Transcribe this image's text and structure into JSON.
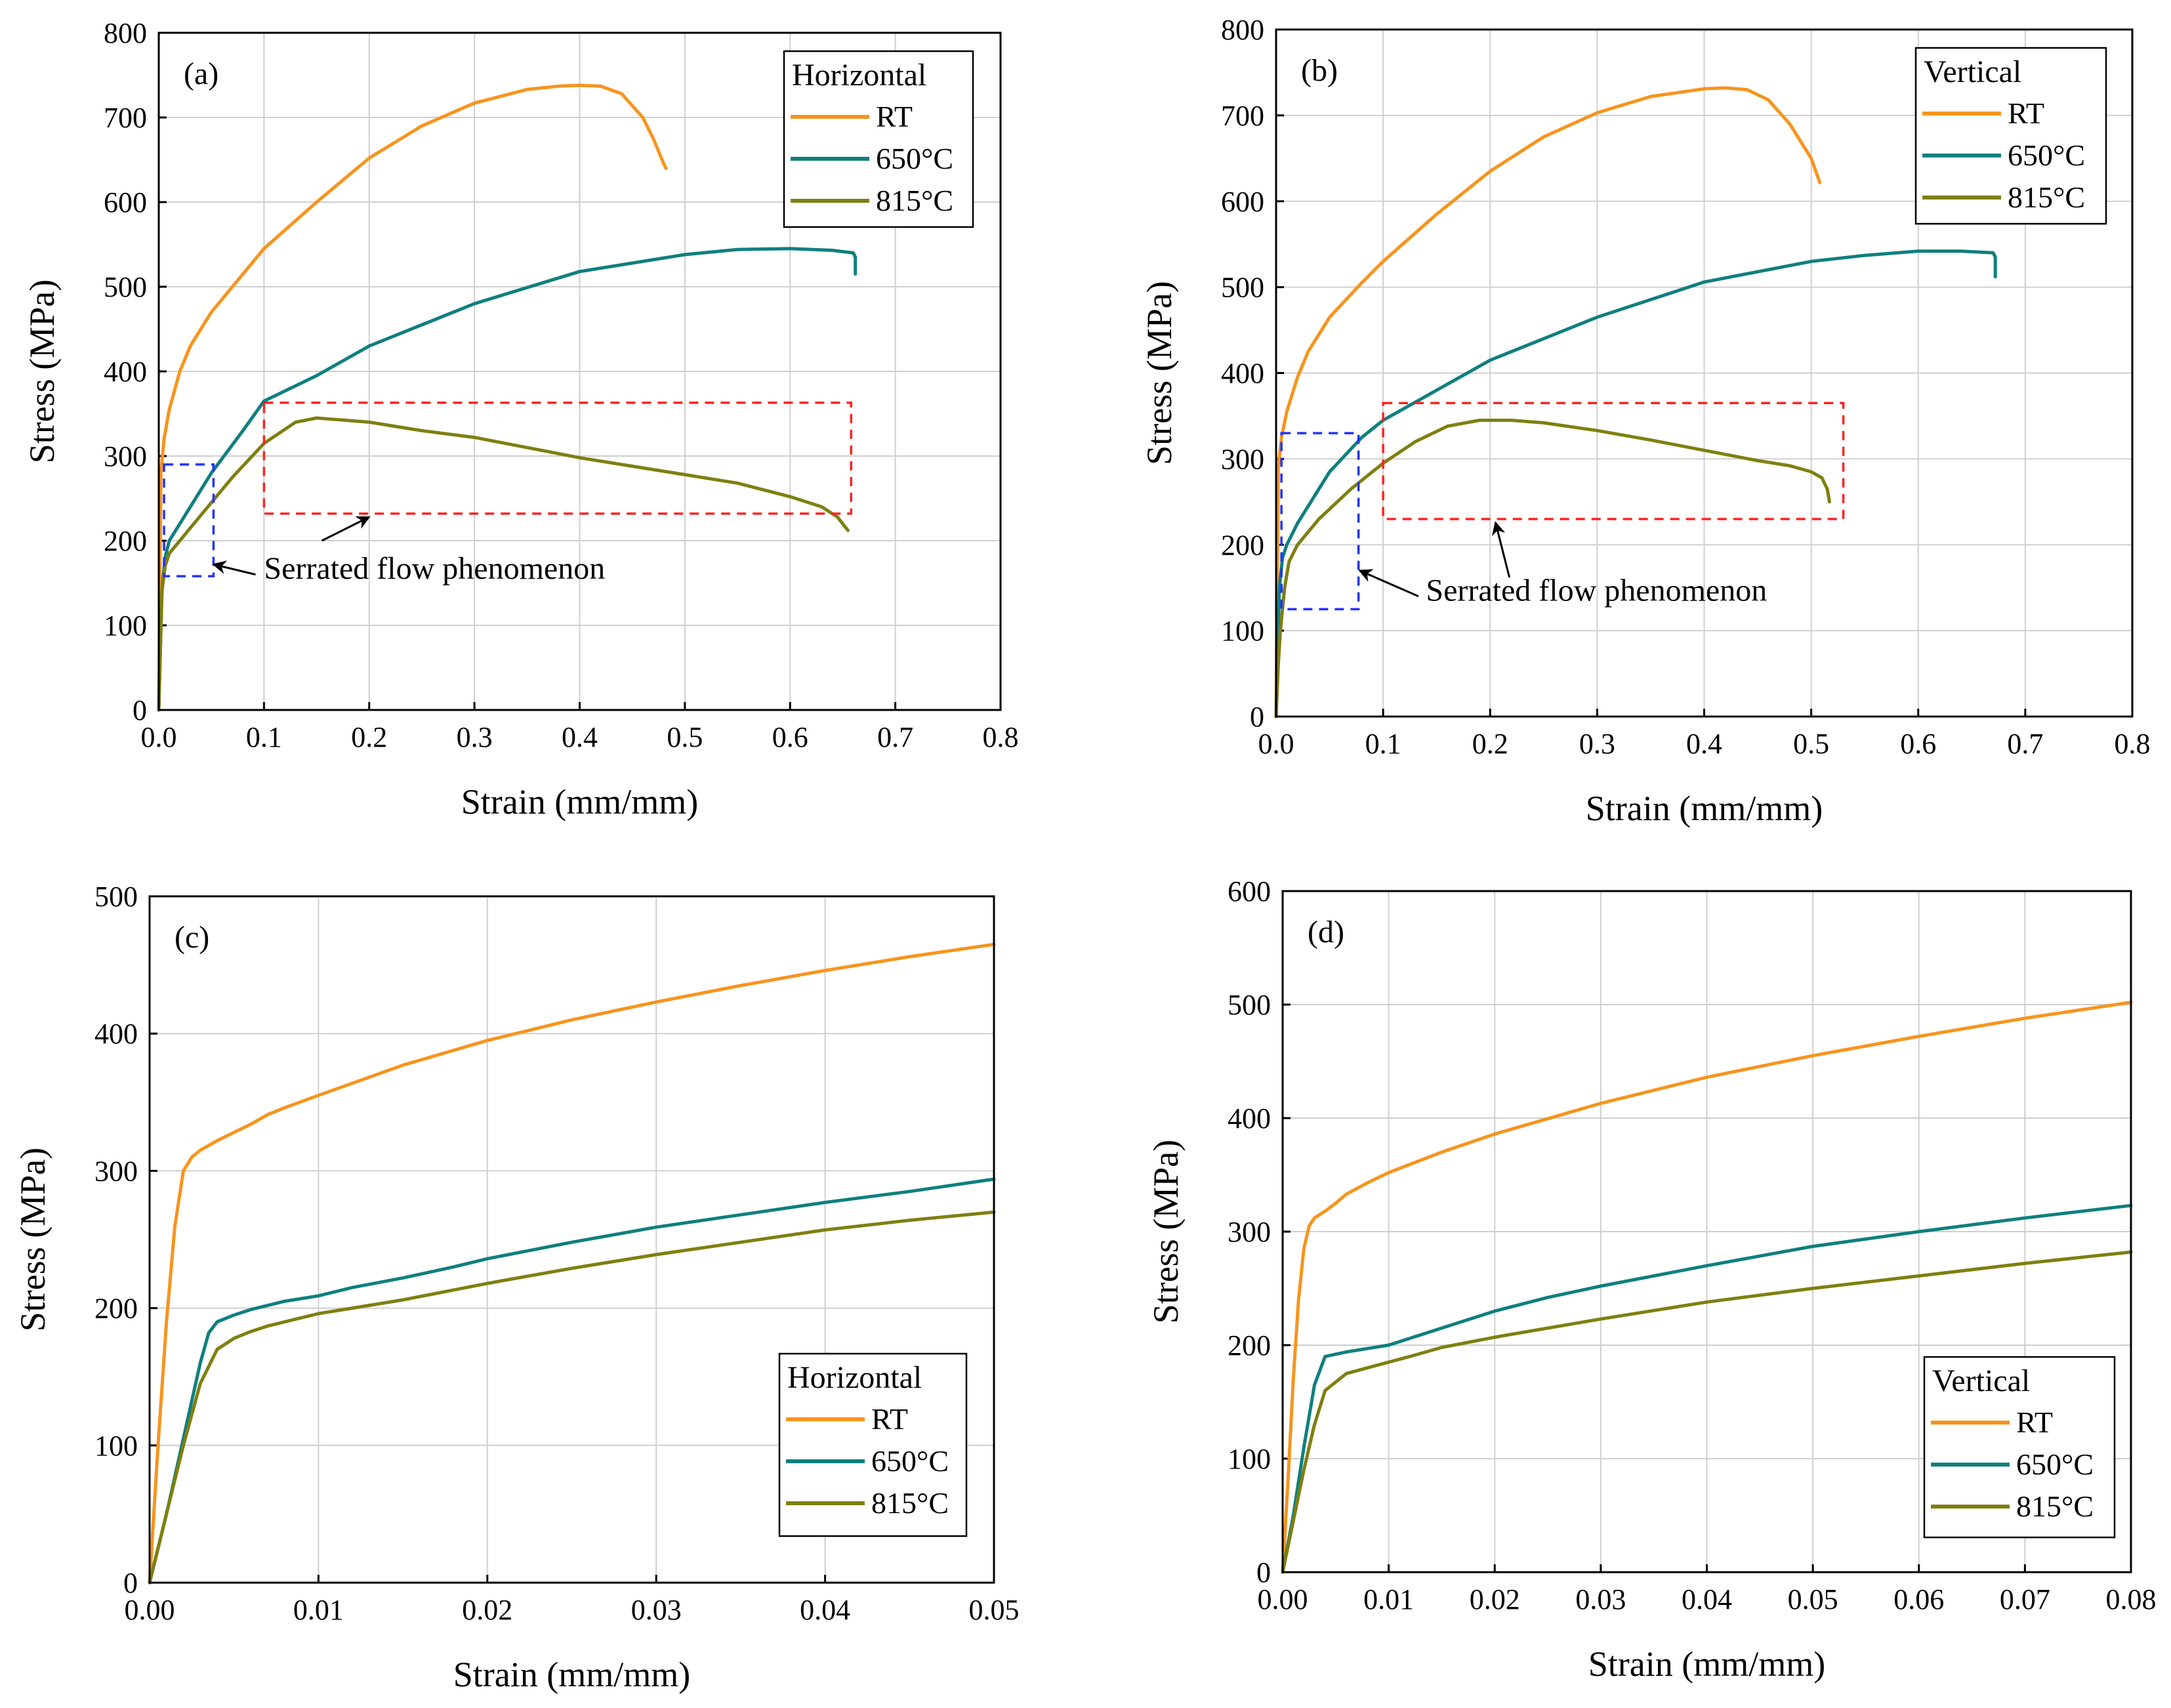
{
  "colors": {
    "rt": "#F7941D",
    "t650": "#0F7F7F",
    "t815": "#7F7F10",
    "box_red": "#FF2222",
    "box_blue": "#2233FF"
  },
  "annotation_text": "Serrated flow phenomenon",
  "chart_data": [
    {
      "id": "a",
      "type": "line",
      "panel_label": "(a)",
      "xlabel": "Strain (mm/mm)",
      "ylabel": "Stress (MPa)",
      "xlim": [
        0,
        0.8
      ],
      "ylim": [
        0,
        800
      ],
      "xticks": [
        "0.0",
        "0.1",
        "0.2",
        "0.3",
        "0.4",
        "0.5",
        "0.6",
        "0.7",
        "0.8"
      ],
      "yticks": [
        "0",
        "100",
        "200",
        "300",
        "400",
        "500",
        "600",
        "700",
        "800"
      ],
      "grid": true,
      "legend": {
        "title": "Horizontal",
        "entries": [
          "RT",
          "650°C",
          "815°C"
        ],
        "position": "top-right"
      },
      "series": [
        {
          "name": "RT",
          "x": [
            0,
            0.002,
            0.005,
            0.01,
            0.02,
            0.03,
            0.05,
            0.08,
            0.1,
            0.15,
            0.2,
            0.25,
            0.3,
            0.35,
            0.38,
            0.4,
            0.42,
            0.44,
            0.46,
            0.47,
            0.48,
            0.482
          ],
          "y": [
            0,
            280,
            320,
            355,
            400,
            430,
            470,
            515,
            545,
            600,
            652,
            690,
            717,
            733,
            737,
            738,
            737,
            728,
            700,
            675,
            645,
            640
          ]
        },
        {
          "name": "650°C",
          "x": [
            0,
            0.003,
            0.006,
            0.01,
            0.02,
            0.03,
            0.05,
            0.08,
            0.1,
            0.15,
            0.2,
            0.3,
            0.4,
            0.5,
            0.55,
            0.6,
            0.64,
            0.66,
            0.662,
            0.662
          ],
          "y": [
            0,
            140,
            180,
            200,
            220,
            240,
            280,
            330,
            365,
            395,
            430,
            480,
            518,
            538,
            544,
            545,
            543,
            540,
            535,
            515
          ]
        },
        {
          "name": "815°C",
          "x": [
            0,
            0.003,
            0.006,
            0.01,
            0.02,
            0.04,
            0.07,
            0.1,
            0.13,
            0.15,
            0.2,
            0.25,
            0.3,
            0.35,
            0.4,
            0.45,
            0.5,
            0.55,
            0.6,
            0.63,
            0.645,
            0.655
          ],
          "y": [
            0,
            140,
            170,
            185,
            200,
            230,
            275,
            315,
            340,
            345,
            340,
            330,
            322,
            310,
            298,
            288,
            278,
            268,
            252,
            240,
            228,
            212
          ]
        }
      ],
      "boxes": [
        {
          "color": "box_blue",
          "x": [
            0.005,
            0.052
          ],
          "y": [
            158,
            290
          ]
        },
        {
          "color": "box_red",
          "x": [
            0.1,
            0.658
          ],
          "y": [
            232,
            363
          ]
        }
      ],
      "annotation": {
        "text_x": 0.1,
        "text_y": 155,
        "arrows": [
          {
            "from": [
              0.092,
              160
            ],
            "to": [
              0.052,
              172
            ]
          },
          {
            "from": [
              0.155,
              200
            ],
            "to": [
              0.2,
              228
            ]
          }
        ]
      }
    },
    {
      "id": "b",
      "type": "line",
      "panel_label": "(b)",
      "xlabel": "Strain (mm/mm)",
      "ylabel": "Stress (MPa)",
      "xlim": [
        0,
        0.8
      ],
      "ylim": [
        0,
        800
      ],
      "xticks": [
        "0.0",
        "0.1",
        "0.2",
        "0.3",
        "0.4",
        "0.5",
        "0.6",
        "0.7",
        "0.8"
      ],
      "yticks": [
        "0",
        "100",
        "200",
        "300",
        "400",
        "500",
        "600",
        "700",
        "800"
      ],
      "grid": true,
      "legend": {
        "title": "Vertical",
        "entries": [
          "RT",
          "650°C",
          "815°C"
        ],
        "position": "top-right"
      },
      "series": [
        {
          "name": "RT",
          "x": [
            0,
            0.002,
            0.005,
            0.01,
            0.02,
            0.03,
            0.05,
            0.08,
            0.1,
            0.15,
            0.2,
            0.25,
            0.3,
            0.35,
            0.4,
            0.42,
            0.44,
            0.46,
            0.48,
            0.5,
            0.508
          ],
          "y": [
            0,
            290,
            325,
            355,
            395,
            425,
            465,
            505,
            530,
            585,
            635,
            675,
            703,
            722,
            731,
            732,
            730,
            718,
            690,
            650,
            622
          ]
        },
        {
          "name": "650°C",
          "x": [
            0,
            0.003,
            0.006,
            0.01,
            0.02,
            0.03,
            0.05,
            0.08,
            0.1,
            0.15,
            0.2,
            0.3,
            0.4,
            0.5,
            0.55,
            0.6,
            0.64,
            0.67,
            0.672,
            0.672
          ],
          "y": [
            0,
            150,
            185,
            200,
            225,
            245,
            285,
            325,
            345,
            380,
            415,
            465,
            506,
            530,
            537,
            542,
            542,
            540,
            535,
            512
          ]
        },
        {
          "name": "815°C",
          "x": [
            0,
            0.002,
            0.004,
            0.008,
            0.012,
            0.02,
            0.04,
            0.07,
            0.1,
            0.13,
            0.16,
            0.19,
            0.22,
            0.25,
            0.3,
            0.35,
            0.4,
            0.45,
            0.48,
            0.5,
            0.51,
            0.515,
            0.517
          ],
          "y": [
            0,
            60,
            100,
            150,
            180,
            200,
            230,
            265,
            295,
            320,
            338,
            345,
            345,
            342,
            333,
            322,
            310,
            298,
            292,
            285,
            278,
            265,
            250
          ]
        }
      ],
      "boxes": [
        {
          "color": "box_blue",
          "x": [
            0.005,
            0.077
          ],
          "y": [
            125,
            330
          ]
        },
        {
          "color": "box_red",
          "x": [
            0.1,
            0.53
          ],
          "y": [
            230,
            365
          ]
        }
      ],
      "annotation": {
        "text_x": 0.14,
        "text_y": 135,
        "arrows": [
          {
            "from": [
              0.133,
              140
            ],
            "to": [
              0.078,
              170
            ]
          },
          {
            "from": [
              0.218,
              162
            ],
            "to": [
              0.205,
              226
            ]
          }
        ]
      }
    },
    {
      "id": "c",
      "type": "line",
      "panel_label": "(c)",
      "xlabel": "Strain (mm/mm)",
      "ylabel": "Stress (MPa)",
      "xlim": [
        0,
        0.05
      ],
      "ylim": [
        0,
        500
      ],
      "xticks": [
        "0.00",
        "0.01",
        "0.02",
        "0.03",
        "0.04",
        "0.05"
      ],
      "yticks": [
        "0",
        "100",
        "200",
        "300",
        "400",
        "500"
      ],
      "grid": true,
      "legend": {
        "title": "Horizontal",
        "entries": [
          "RT",
          "650°C",
          "815°C"
        ],
        "position": "bottom-right"
      },
      "series": [
        {
          "name": "RT",
          "x": [
            0,
            0.0005,
            0.001,
            0.0015,
            0.002,
            0.0025,
            0.003,
            0.004,
            0.005,
            0.006,
            0.007,
            0.008,
            0.01,
            0.015,
            0.02,
            0.025,
            0.03,
            0.035,
            0.04,
            0.045,
            0.05
          ],
          "y": [
            0,
            100,
            190,
            260,
            300,
            310,
            315,
            322,
            328,
            334,
            341,
            346,
            355,
            377,
            395,
            410,
            423,
            435,
            446,
            456,
            465
          ]
        },
        {
          "name": "650°C",
          "x": [
            0,
            0.001,
            0.002,
            0.003,
            0.0035,
            0.004,
            0.005,
            0.006,
            0.007,
            0.008,
            0.009,
            0.01,
            0.012,
            0.015,
            0.018,
            0.02,
            0.025,
            0.03,
            0.035,
            0.04,
            0.045,
            0.05
          ],
          "y": [
            0,
            50,
            105,
            160,
            182,
            190,
            195,
            199,
            202,
            205,
            207,
            209,
            215,
            222,
            230,
            236,
            248,
            259,
            268,
            277,
            285,
            294
          ]
        },
        {
          "name": "815°C",
          "x": [
            0,
            0.001,
            0.002,
            0.003,
            0.004,
            0.005,
            0.006,
            0.007,
            0.008,
            0.009,
            0.01,
            0.012,
            0.015,
            0.02,
            0.025,
            0.03,
            0.035,
            0.04,
            0.045,
            0.05
          ],
          "y": [
            0,
            50,
            100,
            145,
            170,
            178,
            183,
            187,
            190,
            193,
            196,
            200,
            206,
            218,
            229,
            239,
            248,
            257,
            264,
            270
          ]
        }
      ]
    },
    {
      "id": "d",
      "type": "line",
      "panel_label": "(d)",
      "xlabel": "Strain (mm/mm)",
      "ylabel": "Stress (MPa)",
      "xlim": [
        0,
        0.08
      ],
      "ylim": [
        0,
        600
      ],
      "xticks": [
        "0.00",
        "0.01",
        "0.02",
        "0.03",
        "0.04",
        "0.05",
        "0.06",
        "0.07",
        "0.08"
      ],
      "yticks": [
        "0",
        "100",
        "200",
        "300",
        "400",
        "500",
        "600"
      ],
      "grid": true,
      "legend": {
        "title": "Vertical",
        "entries": [
          "RT",
          "650°C",
          "815°C"
        ],
        "position": "bottom-right"
      },
      "series": [
        {
          "name": "RT",
          "x": [
            0,
            0.0005,
            0.001,
            0.0015,
            0.002,
            0.0025,
            0.003,
            0.004,
            0.005,
            0.006,
            0.008,
            0.01,
            0.015,
            0.02,
            0.03,
            0.04,
            0.05,
            0.06,
            0.07,
            0.08
          ],
          "y": [
            0,
            80,
            170,
            240,
            285,
            305,
            312,
            318,
            325,
            333,
            343,
            352,
            370,
            386,
            413,
            436,
            455,
            472,
            488,
            502
          ]
        },
        {
          "name": "650°C",
          "x": [
            0,
            0.001,
            0.002,
            0.003,
            0.004,
            0.005,
            0.006,
            0.008,
            0.01,
            0.015,
            0.02,
            0.025,
            0.03,
            0.04,
            0.05,
            0.06,
            0.07,
            0.08
          ],
          "y": [
            0,
            50,
            110,
            165,
            190,
            192,
            194,
            197,
            200,
            215,
            230,
            242,
            252,
            270,
            287,
            300,
            312,
            323
          ]
        },
        {
          "name": "815°C",
          "x": [
            0,
            0.001,
            0.002,
            0.003,
            0.004,
            0.006,
            0.008,
            0.01,
            0.012,
            0.015,
            0.02,
            0.025,
            0.03,
            0.04,
            0.05,
            0.06,
            0.07,
            0.08
          ],
          "y": [
            0,
            45,
            90,
            130,
            160,
            175,
            180,
            185,
            190,
            198,
            207,
            215,
            223,
            238,
            250,
            261,
            272,
            282
          ]
        }
      ]
    }
  ]
}
